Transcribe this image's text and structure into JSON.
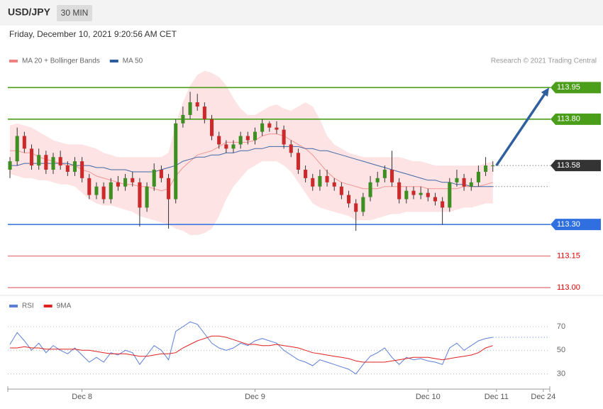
{
  "header": {
    "symbol": "USD/JPY",
    "interval": "30 MIN",
    "timestamp": "Friday, December 10, 2021 9:20:56 AM CET"
  },
  "chart_data": [
    {
      "type": "candlestick",
      "source": "Research © 2021 Trading Central",
      "up_color": "#3d8f22",
      "down_color": "#cc2a2a",
      "x": [
        0,
        1,
        2,
        3,
        4,
        5,
        6,
        7,
        8,
        9,
        10,
        11,
        12,
        13,
        14,
        15,
        16,
        17,
        18,
        19,
        20,
        21,
        22,
        23,
        24,
        25,
        26,
        27,
        28,
        29,
        30,
        31,
        32,
        33,
        34,
        35,
        36,
        37,
        38,
        39,
        40,
        41,
        42,
        43,
        44,
        45,
        46,
        47,
        48,
        49,
        50,
        51,
        52,
        53,
        54,
        55,
        56,
        57,
        58,
        59,
        60,
        61,
        62,
        63,
        64,
        65,
        66,
        67
      ],
      "open": [
        113.56,
        113.6,
        113.72,
        113.66,
        113.58,
        113.63,
        113.56,
        113.62,
        113.58,
        113.55,
        113.6,
        113.52,
        113.44,
        113.48,
        113.42,
        113.5,
        113.48,
        113.52,
        113.5,
        113.38,
        113.48,
        113.56,
        113.52,
        113.42,
        113.78,
        113.82,
        113.88,
        113.86,
        113.8,
        113.72,
        113.68,
        113.66,
        113.68,
        113.72,
        113.7,
        113.74,
        113.78,
        113.76,
        113.75,
        113.68,
        113.64,
        113.56,
        113.52,
        113.48,
        113.53,
        113.5,
        113.48,
        113.44,
        113.4,
        113.36,
        113.43,
        113.5,
        113.52,
        113.56,
        113.5,
        113.42,
        113.46,
        113.44,
        113.45,
        113.43,
        113.41,
        113.38,
        113.5,
        113.52,
        113.48,
        113.5,
        113.55,
        113.58
      ],
      "high": [
        113.62,
        113.76,
        113.74,
        113.68,
        113.66,
        113.65,
        113.64,
        113.65,
        113.6,
        113.62,
        113.62,
        113.54,
        113.5,
        113.5,
        113.52,
        113.53,
        113.54,
        113.55,
        113.52,
        113.5,
        113.59,
        113.58,
        113.54,
        113.8,
        113.86,
        113.93,
        113.92,
        113.88,
        113.82,
        113.74,
        113.7,
        113.7,
        113.74,
        113.74,
        113.76,
        113.8,
        113.79,
        113.79,
        113.77,
        113.7,
        113.66,
        113.58,
        113.54,
        113.56,
        113.56,
        113.52,
        113.5,
        113.46,
        113.42,
        113.45,
        113.53,
        113.55,
        113.58,
        113.65,
        113.52,
        113.48,
        113.48,
        113.48,
        113.47,
        113.45,
        113.43,
        113.52,
        113.56,
        113.54,
        113.52,
        113.58,
        113.62,
        113.6
      ],
      "low": [
        113.52,
        113.58,
        113.64,
        113.56,
        113.56,
        113.54,
        113.54,
        113.56,
        113.53,
        113.53,
        113.5,
        113.42,
        113.42,
        113.4,
        113.4,
        113.46,
        113.46,
        113.48,
        113.29,
        113.36,
        113.46,
        113.5,
        113.28,
        113.4,
        113.76,
        113.8,
        113.84,
        113.78,
        113.7,
        113.66,
        113.64,
        113.64,
        113.66,
        113.68,
        113.68,
        113.72,
        113.74,
        113.73,
        113.66,
        113.62,
        113.54,
        113.5,
        113.46,
        113.46,
        113.48,
        113.46,
        113.42,
        113.38,
        113.27,
        113.34,
        113.41,
        113.48,
        113.5,
        113.48,
        113.4,
        113.4,
        113.42,
        113.42,
        113.41,
        113.39,
        113.3,
        113.36,
        113.48,
        113.46,
        113.46,
        113.48,
        113.53,
        113.55
      ],
      "close": [
        113.6,
        113.72,
        113.66,
        113.58,
        113.63,
        113.56,
        113.62,
        113.58,
        113.55,
        113.6,
        113.52,
        113.44,
        113.48,
        113.42,
        113.5,
        113.48,
        113.52,
        113.5,
        113.38,
        113.48,
        113.56,
        113.52,
        113.42,
        113.78,
        113.82,
        113.88,
        113.86,
        113.8,
        113.72,
        113.68,
        113.66,
        113.68,
        113.72,
        113.7,
        113.74,
        113.78,
        113.76,
        113.75,
        113.68,
        113.64,
        113.56,
        113.52,
        113.48,
        113.53,
        113.5,
        113.48,
        113.44,
        113.4,
        113.36,
        113.43,
        113.5,
        113.52,
        113.56,
        113.5,
        113.42,
        113.46,
        113.44,
        113.45,
        113.43,
        113.41,
        113.38,
        113.5,
        113.52,
        113.48,
        113.5,
        113.55,
        113.58,
        113.58
      ],
      "overlays": [
        {
          "name": "MA 20 + Bollinger Bands",
          "color": "#f08080",
          "band_color": "#fde3e3",
          "values": [
            113.65,
            113.65,
            113.64,
            113.64,
            113.62,
            113.61,
            113.6,
            113.59,
            113.58,
            113.58,
            113.56,
            113.55,
            113.53,
            113.52,
            113.51,
            113.5,
            113.49,
            113.49,
            113.48,
            113.48,
            113.47,
            113.46,
            113.47,
            113.53,
            113.57,
            113.6,
            113.63,
            113.64,
            113.65,
            113.67,
            113.69,
            113.69,
            113.69,
            113.69,
            113.7,
            113.72,
            113.73,
            113.73,
            113.72,
            113.7,
            113.68,
            113.66,
            113.63,
            113.59,
            113.55,
            113.52,
            113.5,
            113.49,
            113.48,
            113.47,
            113.47,
            113.47,
            113.48,
            113.48,
            113.48,
            113.48,
            113.48,
            113.48,
            113.47,
            113.47,
            113.47,
            113.47,
            113.47,
            113.48,
            113.48,
            113.48,
            113.49,
            113.5
          ],
          "upper": [
            113.77,
            113.78,
            113.77,
            113.76,
            113.74,
            113.72,
            113.7,
            113.69,
            113.68,
            113.68,
            113.68,
            113.67,
            113.66,
            113.64,
            113.63,
            113.62,
            113.62,
            113.62,
            113.62,
            113.62,
            113.62,
            113.62,
            113.64,
            113.78,
            113.88,
            113.96,
            114.01,
            114.03,
            114.02,
            114.0,
            113.96,
            113.9,
            113.85,
            113.82,
            113.82,
            113.84,
            113.86,
            113.87,
            113.85,
            113.84,
            113.86,
            113.88,
            113.86,
            113.8,
            113.72,
            113.68,
            113.66,
            113.64,
            113.63,
            113.62,
            113.62,
            113.62,
            113.62,
            113.62,
            113.62,
            113.61,
            113.6,
            113.6,
            113.59,
            113.58,
            113.58,
            113.58,
            113.58,
            113.58,
            113.58,
            113.58,
            113.59,
            113.6
          ],
          "lower": [
            113.54,
            113.53,
            113.52,
            113.52,
            113.51,
            113.51,
            113.5,
            113.49,
            113.49,
            113.48,
            113.45,
            113.42,
            113.4,
            113.39,
            113.39,
            113.38,
            113.37,
            113.36,
            113.34,
            113.33,
            113.32,
            113.31,
            113.3,
            113.28,
            113.27,
            113.25,
            113.25,
            113.26,
            113.28,
            113.34,
            113.42,
            113.48,
            113.52,
            113.56,
            113.58,
            113.6,
            113.6,
            113.6,
            113.58,
            113.55,
            113.5,
            113.45,
            113.4,
            113.38,
            113.37,
            113.36,
            113.35,
            113.34,
            113.32,
            113.32,
            113.32,
            113.33,
            113.34,
            113.35,
            113.35,
            113.36,
            113.36,
            113.36,
            113.36,
            113.36,
            113.36,
            113.36,
            113.37,
            113.38,
            113.38,
            113.39,
            113.4,
            113.4
          ]
        },
        {
          "name": "MA 50",
          "color": "#2c5a9e",
          "values": [
            113.58,
            113.58,
            113.59,
            113.59,
            113.59,
            113.59,
            113.59,
            113.59,
            113.59,
            113.58,
            113.58,
            113.58,
            113.57,
            113.57,
            113.56,
            113.56,
            113.56,
            113.55,
            113.55,
            113.55,
            113.55,
            113.56,
            113.57,
            113.58,
            113.6,
            113.61,
            113.62,
            113.62,
            113.63,
            113.63,
            113.64,
            113.64,
            113.65,
            113.65,
            113.66,
            113.66,
            113.67,
            113.67,
            113.67,
            113.67,
            113.67,
            113.66,
            113.66,
            113.65,
            113.65,
            113.64,
            113.63,
            113.62,
            113.61,
            113.6,
            113.59,
            113.58,
            113.57,
            113.56,
            113.55,
            113.54,
            113.53,
            113.52,
            113.51,
            113.51,
            113.5,
            113.5,
            113.49,
            113.49,
            113.48,
            113.48,
            113.48,
            113.48
          ]
        }
      ],
      "levels": [
        {
          "value": 113.95,
          "label": "113.95",
          "color": "#4a9e1a",
          "box": true
        },
        {
          "value": 113.8,
          "label": "113.80",
          "color": "#4a9e1a",
          "box": true
        },
        {
          "value": 113.58,
          "label": "113.58",
          "color": "#333333",
          "box": true,
          "dotted": true
        },
        {
          "value": 113.3,
          "label": "113.30",
          "color": "#2f6fe0",
          "box": true
        },
        {
          "value": 113.15,
          "label": "113.15",
          "color": "#e06060",
          "box": false
        },
        {
          "value": 113.0,
          "label": "113.00",
          "color": "#e06060",
          "box": false
        }
      ],
      "arrow_color": "#2f5f9e",
      "xlim": [
        -0.3,
        74.9
      ],
      "ylim": [
        112.97,
        114.15
      ]
    },
    {
      "type": "line",
      "x": [
        0,
        1,
        2,
        3,
        4,
        5,
        6,
        7,
        8,
        9,
        10,
        11,
        12,
        13,
        14,
        15,
        16,
        17,
        18,
        19,
        20,
        21,
        22,
        23,
        24,
        25,
        26,
        27,
        28,
        29,
        30,
        31,
        32,
        33,
        34,
        35,
        36,
        37,
        38,
        39,
        40,
        41,
        42,
        43,
        44,
        45,
        46,
        47,
        48,
        49,
        50,
        51,
        52,
        53,
        54,
        55,
        56,
        57,
        58,
        59,
        60,
        61,
        62,
        63,
        64,
        65,
        66,
        67
      ],
      "series": [
        {
          "name": "RSI",
          "color": "#5b7fd6",
          "values": [
            55,
            65,
            58,
            50,
            56,
            48,
            54,
            50,
            47,
            52,
            46,
            40,
            44,
            40,
            48,
            46,
            50,
            48,
            38,
            46,
            54,
            50,
            42,
            66,
            70,
            74,
            72,
            64,
            56,
            52,
            50,
            52,
            56,
            54,
            58,
            60,
            58,
            56,
            50,
            46,
            42,
            40,
            37,
            42,
            40,
            38,
            36,
            34,
            30,
            38,
            45,
            48,
            52,
            44,
            38,
            44,
            42,
            43,
            41,
            40,
            38,
            52,
            56,
            50,
            54,
            58,
            60,
            61
          ]
        },
        {
          "name": "9MA",
          "color": "#e02020",
          "values": [
            52,
            52,
            53,
            52,
            52,
            51,
            51,
            51,
            51,
            51,
            50,
            50,
            49,
            48,
            47,
            47,
            47,
            46,
            45,
            45,
            46,
            47,
            47,
            48,
            52,
            55,
            58,
            60,
            62,
            62,
            61,
            59,
            57,
            55,
            55,
            54,
            54,
            55,
            54,
            53,
            52,
            50,
            48,
            47,
            46,
            45,
            44,
            43,
            41,
            40,
            40,
            40,
            40,
            41,
            42,
            43,
            44,
            44,
            44,
            43,
            42,
            43,
            44,
            45,
            46,
            48,
            52,
            54
          ]
        }
      ],
      "xlim": [
        -0.3,
        74.9
      ],
      "ylim": [
        19,
        82
      ],
      "yticks": [
        30,
        50,
        70
      ],
      "xticks": [
        {
          "value": 10,
          "label": "Dec 8"
        },
        {
          "value": 34,
          "label": "Dec 9"
        },
        {
          "value": 58,
          "label": "Dec 10"
        },
        {
          "value": 67.5,
          "label": "Dec 11"
        },
        {
          "value": 74,
          "label": "Dec 24"
        }
      ],
      "grid": true
    }
  ]
}
